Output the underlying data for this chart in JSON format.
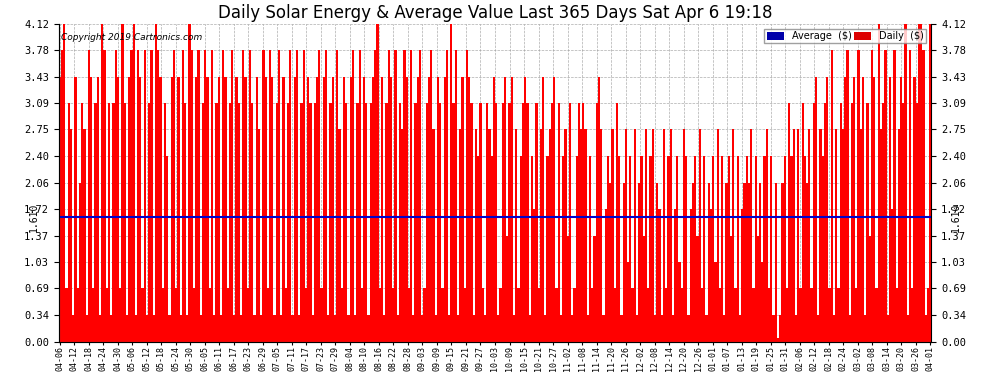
{
  "title": "Daily Solar Energy & Average Value Last 365 Days Sat Apr 6 19:18",
  "copyright": "Copyright 2019 Cartronics.com",
  "average_value": 1.61,
  "average_label": "1.610",
  "ylim": [
    0.0,
    4.12
  ],
  "yticks": [
    0.0,
    0.34,
    0.69,
    1.03,
    1.37,
    1.72,
    2.06,
    2.4,
    2.75,
    3.09,
    3.43,
    3.78,
    4.12
  ],
  "bar_color": "#ff0000",
  "avg_line_color": "#0000cc",
  "background_color": "#ffffff",
  "grid_color": "#999999",
  "title_fontsize": 12,
  "legend_avg_color": "#0000aa",
  "legend_daily_color": "#dd0000",
  "xtick_labels": [
    "04-06",
    "04-12",
    "04-18",
    "04-24",
    "04-30",
    "05-06",
    "05-12",
    "05-18",
    "05-24",
    "05-30",
    "06-05",
    "06-11",
    "06-17",
    "06-23",
    "06-29",
    "07-05",
    "07-11",
    "07-17",
    "07-23",
    "07-29",
    "08-04",
    "08-10",
    "08-16",
    "08-22",
    "08-28",
    "09-03",
    "09-09",
    "09-15",
    "09-21",
    "09-27",
    "10-03",
    "10-09",
    "10-15",
    "10-21",
    "10-27",
    "11-02",
    "11-08",
    "11-14",
    "11-20",
    "11-26",
    "12-02",
    "12-08",
    "12-14",
    "12-20",
    "12-26",
    "01-01",
    "01-07",
    "01-13",
    "01-19",
    "01-25",
    "01-31",
    "02-06",
    "02-12",
    "02-18",
    "02-24",
    "03-02",
    "03-08",
    "03-14",
    "03-20",
    "03-26",
    "04-01"
  ],
  "daily_values": [
    3.43,
    3.78,
    4.12,
    0.69,
    3.09,
    2.75,
    0.34,
    3.43,
    0.69,
    2.06,
    3.09,
    2.75,
    0.34,
    3.78,
    3.43,
    0.69,
    3.09,
    3.43,
    0.34,
    4.12,
    3.78,
    0.69,
    3.09,
    0.34,
    3.09,
    3.78,
    3.43,
    0.69,
    4.12,
    3.09,
    0.34,
    3.43,
    3.78,
    4.12,
    0.34,
    3.78,
    3.43,
    0.69,
    3.78,
    0.34,
    3.09,
    3.78,
    0.34,
    4.12,
    3.78,
    3.43,
    0.69,
    3.09,
    2.4,
    0.34,
    3.43,
    3.78,
    0.69,
    3.43,
    0.34,
    3.78,
    3.09,
    0.34,
    4.12,
    3.78,
    0.69,
    3.43,
    3.78,
    0.34,
    3.09,
    3.78,
    3.43,
    0.69,
    3.78,
    0.34,
    3.09,
    3.43,
    0.34,
    3.78,
    3.43,
    0.69,
    3.09,
    3.78,
    0.34,
    3.43,
    3.09,
    0.34,
    3.78,
    3.43,
    0.69,
    3.78,
    3.09,
    0.34,
    3.43,
    2.75,
    0.34,
    3.78,
    3.43,
    0.69,
    3.78,
    3.43,
    0.34,
    3.09,
    3.78,
    0.34,
    3.43,
    0.69,
    3.09,
    3.78,
    0.34,
    3.43,
    3.78,
    0.34,
    3.09,
    3.78,
    0.69,
    3.43,
    3.09,
    0.34,
    3.09,
    3.43,
    3.78,
    0.69,
    3.43,
    3.78,
    0.34,
    3.09,
    3.43,
    0.34,
    3.78,
    2.75,
    0.69,
    3.43,
    3.09,
    0.34,
    3.43,
    3.78,
    0.34,
    3.09,
    3.78,
    0.69,
    3.43,
    3.09,
    0.34,
    3.09,
    3.43,
    3.78,
    4.12,
    0.69,
    3.43,
    0.34,
    3.09,
    3.78,
    3.43,
    0.69,
    3.78,
    0.34,
    3.09,
    2.75,
    3.78,
    3.43,
    0.69,
    3.78,
    0.34,
    3.09,
    3.43,
    3.78,
    0.34,
    0.69,
    3.09,
    3.43,
    3.78,
    2.75,
    0.34,
    3.43,
    3.09,
    0.69,
    3.43,
    3.78,
    0.34,
    4.12,
    3.09,
    3.78,
    0.34,
    2.75,
    3.43,
    0.69,
    3.78,
    3.43,
    3.09,
    0.34,
    2.75,
    2.4,
    3.09,
    0.69,
    0.34,
    3.09,
    2.75,
    2.4,
    3.43,
    3.09,
    0.34,
    0.69,
    3.09,
    3.43,
    1.37,
    3.09,
    3.43,
    0.34,
    2.75,
    0.69,
    2.4,
    3.09,
    3.43,
    3.09,
    0.34,
    2.4,
    1.72,
    3.09,
    0.69,
    2.75,
    3.43,
    0.34,
    2.4,
    2.75,
    3.09,
    3.43,
    0.69,
    3.09,
    0.34,
    2.4,
    2.75,
    1.37,
    3.09,
    0.34,
    0.69,
    2.4,
    3.09,
    2.75,
    3.09,
    2.75,
    0.34,
    2.4,
    0.69,
    1.37,
    3.09,
    3.43,
    2.75,
    0.34,
    1.72,
    2.4,
    2.06,
    2.75,
    0.69,
    3.09,
    2.4,
    0.34,
    2.06,
    2.75,
    1.03,
    2.4,
    0.69,
    2.75,
    0.34,
    2.06,
    2.4,
    1.37,
    2.75,
    0.69,
    2.4,
    2.75,
    0.34,
    2.06,
    1.72,
    0.34,
    2.75,
    0.69,
    2.4,
    2.75,
    0.34,
    1.72,
    2.4,
    1.03,
    0.69,
    2.75,
    2.4,
    0.34,
    1.72,
    2.06,
    2.4,
    1.37,
    2.75,
    0.69,
    2.4,
    0.34,
    2.06,
    1.72,
    2.4,
    1.03,
    2.75,
    0.69,
    2.4,
    0.34,
    2.06,
    2.4,
    1.37,
    2.75,
    0.69,
    2.4,
    0.34,
    1.72,
    2.06,
    2.4,
    2.06,
    2.75,
    0.69,
    2.4,
    1.37,
    2.06,
    1.03,
    2.4,
    2.75,
    0.69,
    2.4,
    0.34,
    2.06,
    0.05,
    0.34,
    2.06,
    2.4,
    0.69,
    3.09,
    2.4,
    2.75,
    0.34,
    2.75,
    0.69,
    3.09,
    2.4,
    2.06,
    2.75,
    0.69,
    3.09,
    3.43,
    0.34,
    2.75,
    2.4,
    3.09,
    3.43,
    0.69,
    3.78,
    0.34,
    2.75,
    0.69,
    3.09,
    2.75,
    3.43,
    3.78,
    0.34,
    3.09,
    3.43,
    0.69,
    3.78,
    2.75,
    3.43,
    0.34,
    3.09,
    1.37,
    3.78,
    3.43,
    0.69,
    4.12,
    2.75,
    3.09,
    3.78,
    0.34,
    3.43,
    1.72,
    3.78,
    0.69,
    2.75,
    3.43,
    3.09,
    4.12,
    0.34,
    3.78,
    0.69,
    3.43,
    3.09,
    4.12,
    4.12,
    3.78,
    0.34,
    0.69,
    4.12
  ]
}
